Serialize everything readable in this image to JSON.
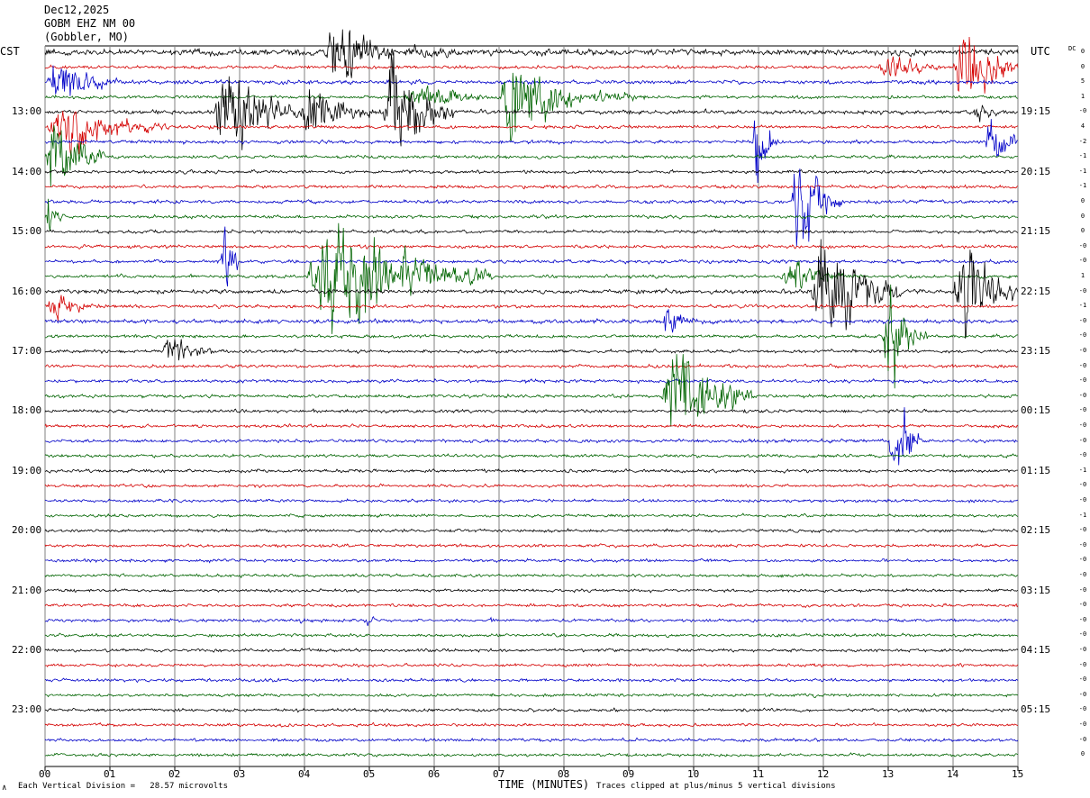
{
  "header": {
    "date": "Dec12,2025",
    "station": "GOBM EHZ NM 00",
    "location": "(Gobbler, MO)"
  },
  "left_tz": "CST",
  "right_tz": "UTC",
  "dc_label": "DC",
  "footer": {
    "scale_note": "Each Vertical Division =   28.57 microvolts",
    "xlabel": "TIME (MINUTES)",
    "clip_note": "Traces clipped at plus/minus 5 vertical divisions",
    "corner_mark": "∧"
  },
  "chart_data": {
    "type": "line",
    "title": "",
    "xlabel": "TIME (MINUTES)",
    "ylabel": "",
    "xlim": [
      0,
      15
    ],
    "x_ticks": [
      "00",
      "01",
      "02",
      "03",
      "04",
      "05",
      "06",
      "07",
      "08",
      "09",
      "10",
      "11",
      "12",
      "13",
      "14",
      "15"
    ],
    "grid": true,
    "trace_count": 48,
    "trace_minutes": 15,
    "trace_colors": [
      "#000000",
      "#d40000",
      "#0000c8",
      "#006400"
    ],
    "hour_labels_local": [
      {
        "trace": 4,
        "text": "13:00"
      },
      {
        "trace": 8,
        "text": "14:00"
      },
      {
        "trace": 12,
        "text": "15:00"
      },
      {
        "trace": 16,
        "text": "16:00"
      },
      {
        "trace": 20,
        "text": "17:00"
      },
      {
        "trace": 24,
        "text": "18:00"
      },
      {
        "trace": 28,
        "text": "19:00"
      },
      {
        "trace": 32,
        "text": "20:00"
      },
      {
        "trace": 36,
        "text": "21:00"
      },
      {
        "trace": 40,
        "text": "22:00"
      },
      {
        "trace": 44,
        "text": "23:00"
      }
    ],
    "hour_labels_utc": [
      {
        "trace": 4,
        "text": "19:15"
      },
      {
        "trace": 8,
        "text": "20:15"
      },
      {
        "trace": 12,
        "text": "21:15"
      },
      {
        "trace": 16,
        "text": "22:15"
      },
      {
        "trace": 20,
        "text": "23:15"
      },
      {
        "trace": 24,
        "text": "00:15"
      },
      {
        "trace": 28,
        "text": "01:15"
      },
      {
        "trace": 32,
        "text": "02:15"
      },
      {
        "trace": 36,
        "text": "03:15"
      },
      {
        "trace": 40,
        "text": "04:15"
      },
      {
        "trace": 44,
        "text": "05:15"
      }
    ],
    "dc_offsets": [
      "0",
      "0",
      "5",
      "1",
      "-0",
      "4",
      "-2",
      "-1",
      "-1",
      "-1",
      "0",
      "0",
      "0",
      "-0",
      "-0",
      "1",
      "-0",
      "-1",
      "-0",
      "-0",
      "-0",
      "-0",
      "-0",
      "-0",
      "-0",
      "-0",
      "-0",
      "-0",
      "-1",
      "-0",
      "-0",
      "-1",
      "-0",
      "-0",
      "-0",
      "-0",
      "-0",
      "-0",
      "-0",
      "-0",
      "-0",
      "-0",
      "-0",
      "-0",
      "-0",
      "-0",
      "-0",
      "0"
    ],
    "noise_levels": [
      3,
      1.6,
      2,
      1.6,
      2,
      1.6,
      1.7,
      1.6,
      1.6,
      1.6,
      1.7,
      1.6,
      1.6,
      1.6,
      1.7,
      1.6,
      2,
      1.6,
      2,
      1.6,
      1.6,
      1.6,
      1.6,
      1.6,
      1.6,
      1.6,
      1.6,
      1.6,
      1.6,
      1.5,
      1.5,
      1.5,
      1.5,
      1.5,
      1.5,
      1.5,
      1.5,
      1.5,
      1.5,
      1.5,
      1.5,
      1.5,
      1.5,
      1.5,
      1.5,
      1.5,
      1.5,
      1.5
    ],
    "events": [
      {
        "trace": 0,
        "start_min": 4.3,
        "end_min": 5.4,
        "peak_div": 4
      },
      {
        "trace": 0,
        "start_min": 5.4,
        "end_min": 7.5,
        "peak_div": 0.6
      },
      {
        "trace": 1,
        "start_min": 12.8,
        "end_min": 14.0,
        "peak_div": 1.2
      },
      {
        "trace": 1,
        "start_min": 14.0,
        "end_min": 15.0,
        "peak_div": 5
      },
      {
        "trace": 2,
        "start_min": 0.0,
        "end_min": 1.2,
        "peak_div": 2.5
      },
      {
        "trace": 3,
        "start_min": 5.5,
        "end_min": 7.0,
        "peak_div": 1.5
      },
      {
        "trace": 3,
        "start_min": 7.0,
        "end_min": 8.3,
        "peak_div": 5
      },
      {
        "trace": 3,
        "start_min": 8.3,
        "end_min": 10.0,
        "peak_div": 0.6
      },
      {
        "trace": 4,
        "start_min": 2.6,
        "end_min": 3.9,
        "peak_div": 5
      },
      {
        "trace": 4,
        "start_min": 3.9,
        "end_min": 5.2,
        "peak_div": 2.5
      },
      {
        "trace": 4,
        "start_min": 5.2,
        "end_min": 6.3,
        "peak_div": 5
      },
      {
        "trace": 4,
        "start_min": 14.3,
        "end_min": 15.0,
        "peak_div": 1
      },
      {
        "trace": 5,
        "start_min": 0.0,
        "end_min": 1.9,
        "peak_div": 2.5
      },
      {
        "trace": 6,
        "start_min": 10.9,
        "end_min": 11.3,
        "peak_div": 4
      },
      {
        "trace": 6,
        "start_min": 14.5,
        "end_min": 15.0,
        "peak_div": 5
      },
      {
        "trace": 7,
        "start_min": 0.0,
        "end_min": 0.9,
        "peak_div": 5
      },
      {
        "trace": 10,
        "start_min": 11.5,
        "end_min": 12.3,
        "peak_div": 5
      },
      {
        "trace": 11,
        "start_min": 0.0,
        "end_min": 0.3,
        "peak_div": 2
      },
      {
        "trace": 14,
        "start_min": 2.7,
        "end_min": 3.0,
        "peak_div": 5
      },
      {
        "trace": 15,
        "start_min": 4.0,
        "end_min": 6.9,
        "peak_div": 5
      },
      {
        "trace": 15,
        "start_min": 11.3,
        "end_min": 12.6,
        "peak_div": 1.5
      },
      {
        "trace": 16,
        "start_min": 11.8,
        "end_min": 13.2,
        "peak_div": 5
      },
      {
        "trace": 16,
        "start_min": 14.0,
        "end_min": 15.0,
        "peak_div": 5
      },
      {
        "trace": 17,
        "start_min": 0.0,
        "end_min": 0.9,
        "peak_div": 1.3
      },
      {
        "trace": 18,
        "start_min": 9.5,
        "end_min": 10.2,
        "peak_div": 1.5
      },
      {
        "trace": 19,
        "start_min": 12.9,
        "end_min": 13.6,
        "peak_div": 5
      },
      {
        "trace": 20,
        "start_min": 1.8,
        "end_min": 2.7,
        "peak_div": 1.5
      },
      {
        "trace": 23,
        "start_min": 9.5,
        "end_min": 10.9,
        "peak_div": 5
      },
      {
        "trace": 26,
        "start_min": 13.0,
        "end_min": 13.5,
        "peak_div": 5
      },
      {
        "trace": 38,
        "start_min": 3.9,
        "end_min": 4.2,
        "peak_div": 0.5
      },
      {
        "trace": 38,
        "start_min": 4.9,
        "end_min": 5.3,
        "peak_div": 0.5
      },
      {
        "trace": 38,
        "start_min": 6.8,
        "end_min": 7.1,
        "peak_div": 0.4
      }
    ]
  }
}
